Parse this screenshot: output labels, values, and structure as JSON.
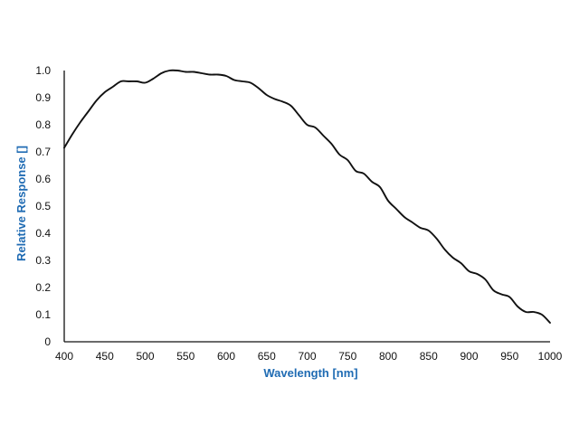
{
  "chart_data": {
    "type": "line",
    "xlabel": "Wavelength [nm]",
    "ylabel": "Relative Response []",
    "xlim": [
      400,
      1000
    ],
    "ylim": [
      0,
      1.0
    ],
    "x_ticks": [
      400,
      450,
      500,
      550,
      600,
      650,
      700,
      750,
      800,
      850,
      900,
      950,
      1000
    ],
    "y_ticks": [
      0,
      0.1,
      0.2,
      0.3,
      0.4,
      0.5,
      0.6,
      0.7,
      0.8,
      0.9,
      1.0
    ],
    "y_tick_labels": [
      "0",
      "0.1",
      "0.2",
      "0.3",
      "0.4",
      "0.5",
      "0.6",
      "0.7",
      "0.8",
      "0.9",
      "1.0"
    ],
    "grid": false,
    "legend": "none",
    "colors": {
      "axis_title": "#1f6bb3",
      "line": "#111111",
      "axis": "#111111"
    },
    "series": [
      {
        "x": [
          400,
          410,
          420,
          430,
          440,
          450,
          460,
          470,
          480,
          490,
          500,
          510,
          520,
          530,
          540,
          550,
          560,
          570,
          580,
          590,
          600,
          610,
          620,
          630,
          640,
          650,
          660,
          670,
          680,
          690,
          700,
          710,
          720,
          730,
          740,
          750,
          760,
          770,
          780,
          790,
          800,
          810,
          820,
          830,
          840,
          850,
          860,
          870,
          880,
          890,
          900,
          910,
          920,
          930,
          940,
          950,
          960,
          970,
          980,
          990,
          1000
        ],
        "values": [
          0.715,
          0.765,
          0.81,
          0.85,
          0.89,
          0.92,
          0.94,
          0.96,
          0.96,
          0.96,
          0.955,
          0.97,
          0.99,
          1.0,
          1.0,
          0.995,
          0.995,
          0.99,
          0.985,
          0.985,
          0.98,
          0.965,
          0.96,
          0.955,
          0.935,
          0.91,
          0.895,
          0.885,
          0.87,
          0.835,
          0.8,
          0.79,
          0.76,
          0.73,
          0.69,
          0.67,
          0.63,
          0.62,
          0.59,
          0.57,
          0.52,
          0.49,
          0.46,
          0.44,
          0.42,
          0.41,
          0.38,
          0.34,
          0.31,
          0.29,
          0.26,
          0.25,
          0.23,
          0.19,
          0.175,
          0.165,
          0.13,
          0.11,
          0.11,
          0.1,
          0.07
        ]
      }
    ]
  }
}
